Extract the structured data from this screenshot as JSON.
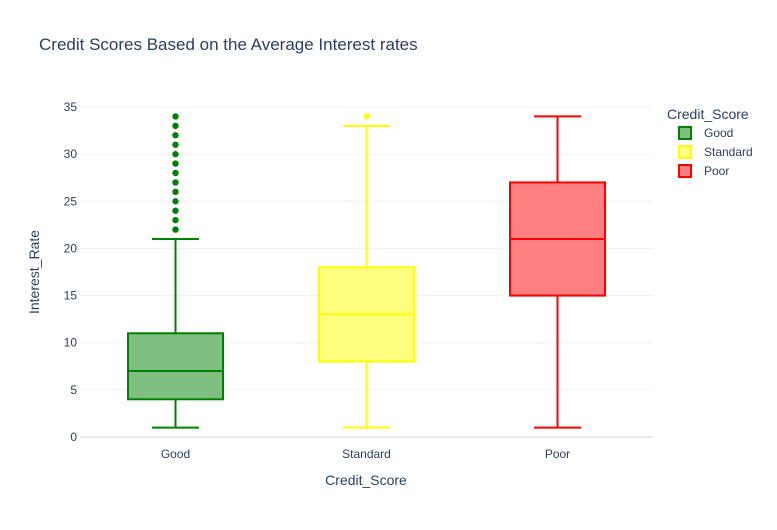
{
  "chart_data": {
    "type": "box",
    "title": "Credit Scores Based on the Average Interest rates",
    "xlabel": "Credit_Score",
    "ylabel": "Interest_Rate",
    "ylim": [
      0,
      35
    ],
    "y_ticks": [
      0,
      5,
      10,
      15,
      20,
      25,
      30,
      35
    ],
    "grid": true,
    "legend": {
      "title": "Credit_Score",
      "placement": "top-right"
    },
    "categories": [
      "Good",
      "Standard",
      "Poor"
    ],
    "series": [
      {
        "name": "Good",
        "color": "#008000",
        "fill": "#7fbf7f",
        "min": 1,
        "q1": 4,
        "median": 7,
        "q3": 11,
        "max": 21,
        "outliers": [
          22,
          23,
          24,
          25,
          26,
          27,
          28,
          29,
          30,
          31,
          32,
          33,
          34
        ]
      },
      {
        "name": "Standard",
        "color": "#ffff00",
        "fill": "#ffff80",
        "min": 1,
        "q1": 8,
        "median": 13,
        "q3": 18,
        "max": 33,
        "outliers": [
          34
        ]
      },
      {
        "name": "Poor",
        "color": "#ff0000",
        "fill": "#ff8080",
        "min": 1,
        "q1": 15,
        "median": 21,
        "q3": 27,
        "max": 34,
        "outliers": []
      }
    ]
  }
}
